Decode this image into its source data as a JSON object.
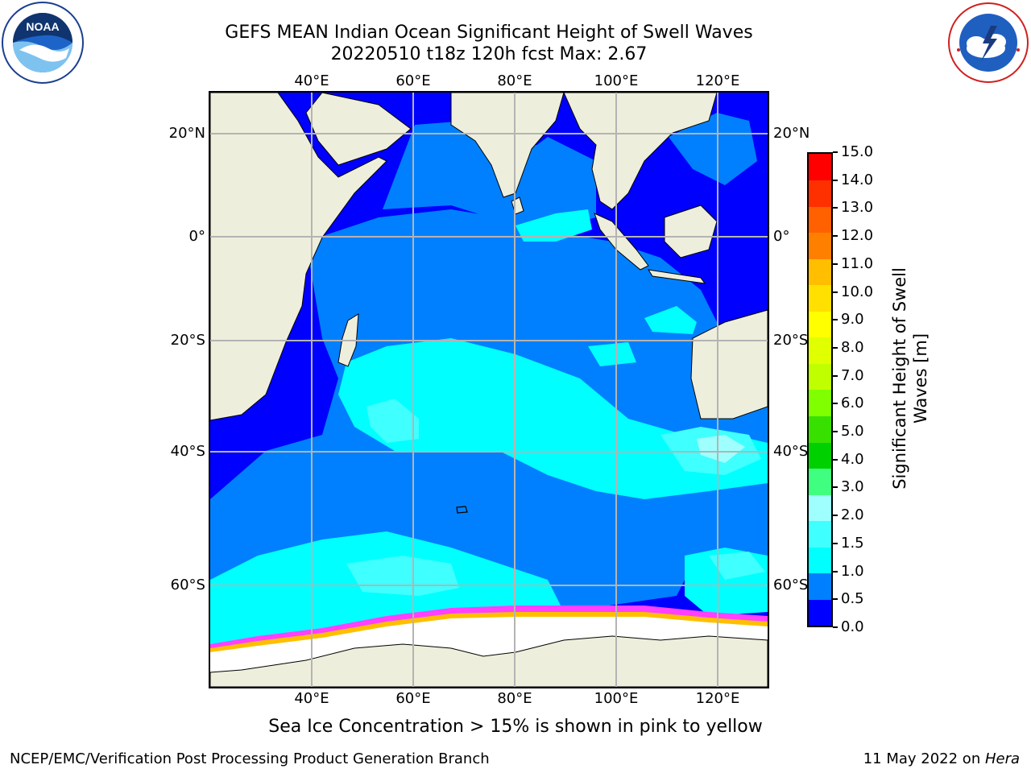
{
  "header": {
    "title_line1": "GEFS MEAN Indian Ocean Significant Height of Swell Waves",
    "title_line2": "20220510 t18z 120h fcst   Max: 2.67",
    "left_logo_text": "NOAA",
    "left_logo_ring_text": "NATIONAL OCEANIC AND ATMOSPHERIC ADMINISTRATION · U.S. DEPARTMENT OF COMMERCE",
    "right_logo_ring_text": "NATIONAL WEATHER SERVICE"
  },
  "map": {
    "lon_labels_top": [
      "40°E",
      "60°E",
      "80°E",
      "100°E",
      "120°E"
    ],
    "lon_labels_bottom": [
      "40°E",
      "60°E",
      "80°E",
      "100°E",
      "120°E"
    ],
    "lat_labels_left": [
      "20°N",
      "0°",
      "20°S",
      "40°S",
      "60°S"
    ],
    "lat_labels_right": [
      "20°N",
      "0°",
      "20°S",
      "40°S",
      "60°S"
    ],
    "colors": {
      "land": "#eeeedc",
      "sea_ice": "#ffffff",
      "grid": "#b4b4b4"
    }
  },
  "colorbar": {
    "label_line1": "Significant Height of Swell",
    "label_line2": "Waves [m]",
    "ticks": [
      "15.0",
      "14.0",
      "13.0",
      "12.0",
      "11.0",
      "10.0",
      "9.0",
      "8.0",
      "7.0",
      "6.0",
      "5.0",
      "4.0",
      "3.0",
      "2.0",
      "1.5",
      "1.0",
      "0.5",
      "0.0"
    ],
    "bin_colors": [
      "#0000ff",
      "#0080ff",
      "#00ffff",
      "#40ffff",
      "#9fffff",
      "#40ff80",
      "#00d000",
      "#38e000",
      "#80ff00",
      "#c0ff00",
      "#e0ff00",
      "#ffff00",
      "#ffe000",
      "#ffbf00",
      "#ff8000",
      "#ff6000",
      "#ff3000",
      "#ff0000"
    ]
  },
  "footer": {
    "note": "Sea Ice Concentration > 15% is shown in pink to yellow",
    "left": "NCEP/EMC/Verification Post Processing Product Generation Branch",
    "right_date": "11 May 2022 on ",
    "right_host": "Hera"
  }
}
